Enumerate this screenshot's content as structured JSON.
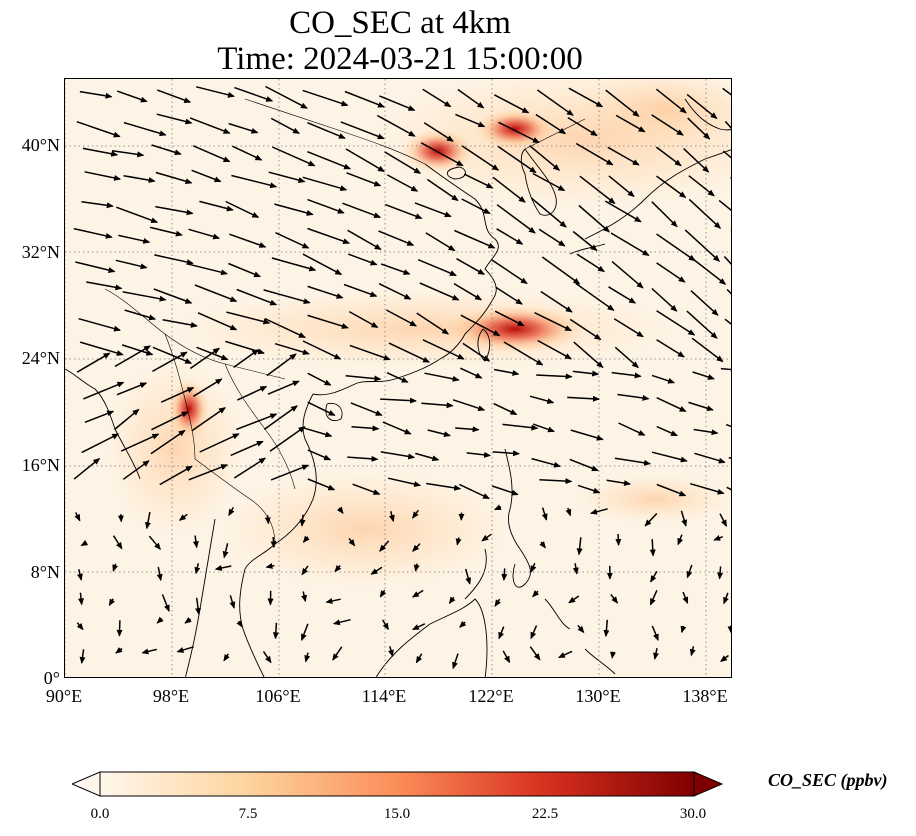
{
  "title": {
    "line1": "CO_SEC at 4km",
    "line2": "Time: 2024-03-21 15:00:00"
  },
  "map": {
    "variable": "CO_SEC",
    "level": "4km",
    "extent": {
      "lon_min": 90,
      "lon_max": 140,
      "lat_min": 0,
      "lat_max": 45
    },
    "lat_ticks": [
      "0°",
      "8°N",
      "16°N",
      "24°N",
      "32°N",
      "40°N"
    ],
    "lon_ticks": [
      "90°E",
      "98°E",
      "106°E",
      "114°E",
      "122°E",
      "130°E",
      "138°E"
    ],
    "gridlines": true,
    "background_color": "#fef4e6",
    "high_concentration_areas": [
      {
        "name": "northeast-china-plume",
        "lon": 117.5,
        "lat": 40.0,
        "value": 20
      },
      {
        "name": "korea-plume",
        "lon": 124.0,
        "lat": 41.5,
        "value": 18
      },
      {
        "name": "taiwan-strait-plume",
        "lon": 123.0,
        "lat": 26.5,
        "value": 17
      },
      {
        "name": "indochina-plume",
        "lon": 99.5,
        "lat": 19.5,
        "value": 22
      }
    ],
    "wind_vectors": "lon/lat arrows showing mostly westerly-northwesterly flow"
  },
  "colorbar": {
    "label": "CO_SEC (ppbv)",
    "ticks": [
      "0.0",
      "7.5",
      "15.0",
      "22.5",
      "30.0"
    ],
    "min": 0,
    "max": 30,
    "colormap": "OrRd",
    "colors": [
      "#fff7ec",
      "#fdd49e",
      "#fc8d59",
      "#d7301f",
      "#7f0000"
    ]
  }
}
